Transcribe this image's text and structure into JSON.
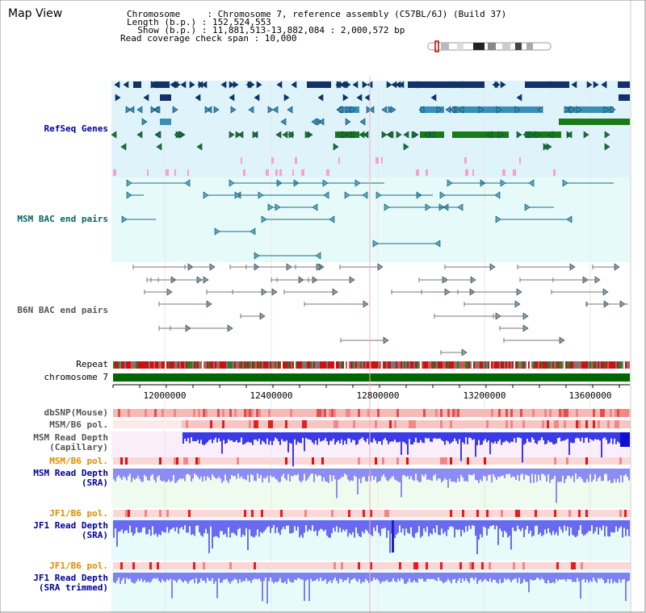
{
  "header": {
    "title": "Map View",
    "lines": [
      "Chromosome     : Chromosome 7, reference assembly (C57BL/6J) (Build 37)",
      "Length (b.p.) : 152,524,553",
      "  Show (b.p.) : 11,881,513-13,882,084 : 2,000,572 bp",
      "Read coverage check span : 10,000"
    ]
  },
  "tracks": {
    "refseq": "RefSeq Genes",
    "msm_bac": "MSM BAC end pairs",
    "b6n_bac": "B6N BAC end pairs",
    "repeat": "Repeat",
    "chromosome": "chromosome 7",
    "dbsnp": "dbSNP(Mouse)",
    "msm_pol": "MSM/B6 pol.",
    "msm_depth_cap_1": "MSM Read Depth",
    "msm_depth_cap_2": "(Capillary)",
    "msm_pol2": "MSM/B6 pol.",
    "msm_depth_sra_1": "MSM Read Depth",
    "msm_depth_sra_2": "(SRA)",
    "jf1_pol": "JF1/B6 pol.",
    "jf1_depth_sra_1": "JF1 Read Depth",
    "jf1_depth_sra_2": "(SRA)",
    "jf1_pol2": "JF1/B6 pol.",
    "jf1_depth_trim_1": "JF1 Read Depth",
    "jf1_depth_trim_2": "(SRA trimmed)"
  },
  "axis": {
    "ticks": [
      "12000000",
      "12400000",
      "12800000",
      "13200000",
      "13600000"
    ]
  },
  "colors": {
    "refseq_bg": "#dff3fb",
    "bac_bg": "#e6fafa",
    "chromosome_bar": "#006600",
    "depth_blue": "#2222dd"
  }
}
